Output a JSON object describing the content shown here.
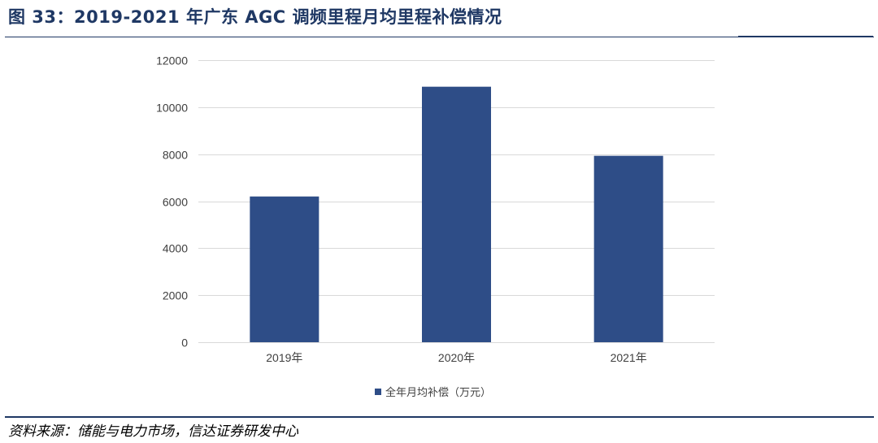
{
  "figure": {
    "title": "图 33：2019-2021 年广东 AGC 调频里程月均里程补偿情况",
    "source": "资料来源：储能与电力市场，信达证券研发中心"
  },
  "chart_data": {
    "type": "bar",
    "categories": [
      "2019年",
      "2020年",
      "2021年"
    ],
    "series": [
      {
        "name": "全年月均补偿（万元）",
        "values": [
          6200,
          10870,
          7930
        ],
        "color": "#2e4d87"
      }
    ],
    "ylim": [
      0,
      12000
    ],
    "yticks": [
      0,
      2000,
      4000,
      6000,
      8000,
      10000,
      12000
    ],
    "grid": true,
    "legend_position": "bottom"
  }
}
